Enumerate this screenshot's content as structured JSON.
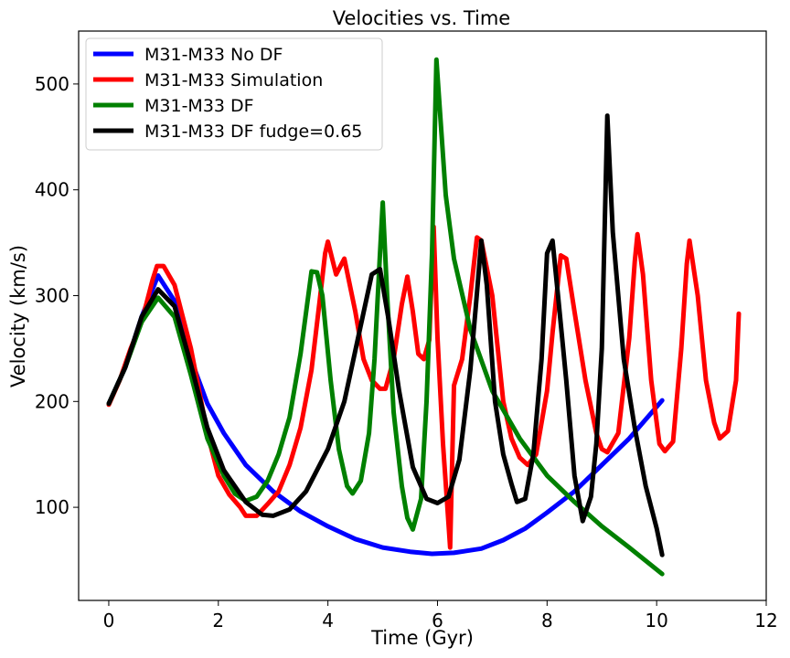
{
  "chart_data": {
    "type": "line",
    "title": "Velocities vs. Time",
    "xlabel": "Time (Gyr)",
    "ylabel": "Velocity (km/s)",
    "xlim": [
      -0.55,
      12
    ],
    "ylim": [
      12,
      550
    ],
    "xticks": [
      0,
      2,
      4,
      6,
      8,
      10,
      12
    ],
    "yticks": [
      100,
      200,
      300,
      400,
      500
    ],
    "legend_position": "top-left",
    "series": [
      {
        "name": "M31-M33 No DF",
        "color": "#0000ff",
        "points": [
          [
            0,
            198
          ],
          [
            0.3,
            232
          ],
          [
            0.6,
            280
          ],
          [
            0.9,
            319
          ],
          [
            1.2,
            295
          ],
          [
            1.5,
            240
          ],
          [
            1.8,
            198
          ],
          [
            2.1,
            170
          ],
          [
            2.5,
            140
          ],
          [
            3.0,
            115
          ],
          [
            3.5,
            96
          ],
          [
            4.0,
            82
          ],
          [
            4.5,
            70
          ],
          [
            5.0,
            62
          ],
          [
            5.5,
            58
          ],
          [
            5.9,
            56
          ],
          [
            6.3,
            57
          ],
          [
            6.8,
            61
          ],
          [
            7.2,
            69
          ],
          [
            7.6,
            80
          ],
          [
            8.0,
            95
          ],
          [
            8.5,
            115
          ],
          [
            9.0,
            140
          ],
          [
            9.5,
            165
          ],
          [
            10.1,
            201
          ]
        ]
      },
      {
        "name": "M31-M33 Simulation",
        "color": "#ff0000",
        "points": [
          [
            0,
            197
          ],
          [
            0.2,
            220
          ],
          [
            0.4,
            250
          ],
          [
            0.6,
            275
          ],
          [
            0.8,
            315
          ],
          [
            0.88,
            328
          ],
          [
            1.0,
            328
          ],
          [
            1.2,
            310
          ],
          [
            1.5,
            250
          ],
          [
            1.8,
            170
          ],
          [
            2.0,
            130
          ],
          [
            2.2,
            112
          ],
          [
            2.4,
            100
          ],
          [
            2.5,
            92
          ],
          [
            2.7,
            92
          ],
          [
            2.9,
            103
          ],
          [
            3.1,
            115
          ],
          [
            3.3,
            140
          ],
          [
            3.5,
            175
          ],
          [
            3.7,
            230
          ],
          [
            3.85,
            295
          ],
          [
            3.95,
            340
          ],
          [
            4.0,
            351
          ],
          [
            4.15,
            320
          ],
          [
            4.3,
            335
          ],
          [
            4.5,
            285
          ],
          [
            4.65,
            240
          ],
          [
            4.8,
            220
          ],
          [
            4.95,
            212
          ],
          [
            5.05,
            212
          ],
          [
            5.2,
            240
          ],
          [
            5.35,
            292
          ],
          [
            5.45,
            318
          ],
          [
            5.55,
            285
          ],
          [
            5.65,
            245
          ],
          [
            5.75,
            240
          ],
          [
            5.85,
            258
          ],
          [
            5.93,
            365
          ],
          [
            6.0,
            260
          ],
          [
            6.1,
            160
          ],
          [
            6.2,
            85
          ],
          [
            6.23,
            62
          ],
          [
            6.3,
            215
          ],
          [
            6.45,
            240
          ],
          [
            6.6,
            300
          ],
          [
            6.72,
            355
          ],
          [
            6.8,
            352
          ],
          [
            7.0,
            300
          ],
          [
            7.2,
            200
          ],
          [
            7.35,
            165
          ],
          [
            7.5,
            147
          ],
          [
            7.65,
            140
          ],
          [
            7.8,
            150
          ],
          [
            8.0,
            210
          ],
          [
            8.1,
            265
          ],
          [
            8.25,
            338
          ],
          [
            8.35,
            335
          ],
          [
            8.5,
            285
          ],
          [
            8.7,
            220
          ],
          [
            8.9,
            170
          ],
          [
            9.0,
            155
          ],
          [
            9.1,
            152
          ],
          [
            9.3,
            170
          ],
          [
            9.5,
            260
          ],
          [
            9.6,
            332
          ],
          [
            9.65,
            358
          ],
          [
            9.75,
            320
          ],
          [
            9.9,
            220
          ],
          [
            10.05,
            160
          ],
          [
            10.15,
            153
          ],
          [
            10.3,
            162
          ],
          [
            10.45,
            250
          ],
          [
            10.55,
            330
          ],
          [
            10.6,
            352
          ],
          [
            10.75,
            300
          ],
          [
            10.9,
            220
          ],
          [
            11.05,
            180
          ],
          [
            11.15,
            165
          ],
          [
            11.3,
            172
          ],
          [
            11.45,
            220
          ],
          [
            11.5,
            283
          ]
        ]
      },
      {
        "name": "M31-M33 DF",
        "color": "#008000",
        "points": [
          [
            0,
            198
          ],
          [
            0.3,
            232
          ],
          [
            0.6,
            275
          ],
          [
            0.9,
            298
          ],
          [
            1.2,
            280
          ],
          [
            1.5,
            225
          ],
          [
            1.8,
            165
          ],
          [
            2.1,
            130
          ],
          [
            2.3,
            113
          ],
          [
            2.5,
            106
          ],
          [
            2.7,
            110
          ],
          [
            2.9,
            125
          ],
          [
            3.1,
            150
          ],
          [
            3.3,
            185
          ],
          [
            3.5,
            245
          ],
          [
            3.7,
            323
          ],
          [
            3.8,
            322
          ],
          [
            3.9,
            300
          ],
          [
            4.05,
            220
          ],
          [
            4.2,
            155
          ],
          [
            4.35,
            120
          ],
          [
            4.45,
            113
          ],
          [
            4.6,
            125
          ],
          [
            4.75,
            170
          ],
          [
            4.85,
            240
          ],
          [
            4.95,
            340
          ],
          [
            5.0,
            388
          ],
          [
            5.08,
            300
          ],
          [
            5.2,
            190
          ],
          [
            5.35,
            120
          ],
          [
            5.45,
            90
          ],
          [
            5.55,
            79
          ],
          [
            5.7,
            108
          ],
          [
            5.8,
            200
          ],
          [
            5.9,
            340
          ],
          [
            5.98,
            523
          ],
          [
            6.05,
            470
          ],
          [
            6.15,
            395
          ],
          [
            6.3,
            335
          ],
          [
            6.6,
            268
          ],
          [
            7.0,
            210
          ],
          [
            7.5,
            165
          ],
          [
            8.0,
            130
          ],
          [
            8.5,
            105
          ],
          [
            9.0,
            82
          ],
          [
            9.5,
            62
          ],
          [
            10.1,
            37
          ]
        ]
      },
      {
        "name": "M31-M33 DF fudge=0.65",
        "color": "#000000",
        "points": [
          [
            0,
            198
          ],
          [
            0.3,
            232
          ],
          [
            0.6,
            280
          ],
          [
            0.9,
            306
          ],
          [
            1.2,
            290
          ],
          [
            1.5,
            235
          ],
          [
            1.8,
            175
          ],
          [
            2.1,
            135
          ],
          [
            2.5,
            105
          ],
          [
            2.8,
            93
          ],
          [
            3.0,
            92
          ],
          [
            3.3,
            98
          ],
          [
            3.6,
            115
          ],
          [
            4.0,
            155
          ],
          [
            4.3,
            200
          ],
          [
            4.55,
            260
          ],
          [
            4.8,
            320
          ],
          [
            4.95,
            325
          ],
          [
            5.1,
            280
          ],
          [
            5.3,
            210
          ],
          [
            5.55,
            138
          ],
          [
            5.8,
            108
          ],
          [
            6.0,
            104
          ],
          [
            6.2,
            110
          ],
          [
            6.4,
            145
          ],
          [
            6.6,
            230
          ],
          [
            6.7,
            290
          ],
          [
            6.8,
            352
          ],
          [
            6.9,
            310
          ],
          [
            7.05,
            200
          ],
          [
            7.2,
            150
          ],
          [
            7.35,
            122
          ],
          [
            7.45,
            105
          ],
          [
            7.6,
            108
          ],
          [
            7.75,
            150
          ],
          [
            7.9,
            240
          ],
          [
            8.0,
            340
          ],
          [
            8.1,
            352
          ],
          [
            8.2,
            300
          ],
          [
            8.35,
            220
          ],
          [
            8.5,
            130
          ],
          [
            8.65,
            87
          ],
          [
            8.8,
            110
          ],
          [
            8.9,
            160
          ],
          [
            9.0,
            250
          ],
          [
            9.1,
            470
          ],
          [
            9.2,
            360
          ],
          [
            9.4,
            240
          ],
          [
            9.6,
            175
          ],
          [
            9.8,
            120
          ],
          [
            10.0,
            80
          ],
          [
            10.1,
            55
          ]
        ]
      }
    ]
  }
}
